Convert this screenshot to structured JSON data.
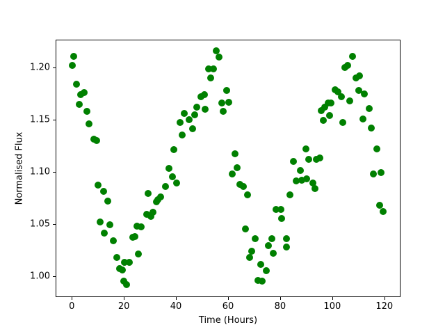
{
  "figure": {
    "background_color": "#ffffff",
    "spine_color": "#000000",
    "tick_color": "#000000",
    "text_color": "#000000"
  },
  "chart_data": {
    "type": "scatter",
    "title": "",
    "xlabel": "Time (Hours)",
    "ylabel": "Normalised Flux",
    "marker": "circle",
    "marker_color": "#008000",
    "marker_diameter_px": 10,
    "grid": false,
    "legend": null,
    "xlim": [
      -6.2,
      126.2
    ],
    "ylim": [
      0.9797,
      1.2268
    ],
    "xticks": [
      0,
      20,
      40,
      60,
      80,
      100,
      120
    ],
    "xtick_labels": [
      "0",
      "20",
      "40",
      "60",
      "80",
      "100",
      "120"
    ],
    "yticks": [
      1.0,
      1.05,
      1.1,
      1.15,
      1.2
    ],
    "ytick_labels": [
      "1.00",
      "1.05",
      "1.10",
      "1.15",
      "1.20"
    ],
    "points": [
      [
        0.2,
        1.202
      ],
      [
        0.8,
        1.211
      ],
      [
        1.9,
        1.184
      ],
      [
        2.8,
        1.165
      ],
      [
        3.4,
        1.174
      ],
      [
        4.7,
        1.176
      ],
      [
        5.7,
        1.158
      ],
      [
        6.6,
        1.146
      ],
      [
        8.5,
        1.131
      ],
      [
        9.5,
        1.13
      ],
      [
        10.1,
        1.087
      ],
      [
        10.8,
        1.052
      ],
      [
        12.3,
        1.081
      ],
      [
        12.4,
        1.041
      ],
      [
        13.9,
        1.072
      ],
      [
        14.5,
        1.049
      ],
      [
        16.0,
        1.034
      ],
      [
        17.2,
        1.018
      ],
      [
        18.3,
        1.007
      ],
      [
        19.4,
        1.006
      ],
      [
        19.9,
        0.995
      ],
      [
        20.2,
        1.013
      ],
      [
        21.1,
        0.992
      ],
      [
        22.1,
        1.013
      ],
      [
        23.4,
        1.037
      ],
      [
        24.3,
        1.038
      ],
      [
        25.0,
        1.048
      ],
      [
        25.5,
        1.021
      ],
      [
        26.5,
        1.047
      ],
      [
        28.8,
        1.059
      ],
      [
        29.4,
        1.079
      ],
      [
        30.3,
        1.057
      ],
      [
        31.1,
        1.061
      ],
      [
        32.4,
        1.071
      ],
      [
        33.0,
        1.073
      ],
      [
        34.0,
        1.076
      ],
      [
        35.9,
        1.086
      ],
      [
        37.2,
        1.103
      ],
      [
        38.7,
        1.095
      ],
      [
        39.2,
        1.121
      ],
      [
        40.3,
        1.089
      ],
      [
        41.6,
        1.147
      ],
      [
        42.3,
        1.135
      ],
      [
        43.3,
        1.156
      ],
      [
        45.0,
        1.15
      ],
      [
        46.3,
        1.141
      ],
      [
        47.2,
        1.155
      ],
      [
        48.1,
        1.162
      ],
      [
        49.7,
        1.172
      ],
      [
        50.8,
        1.174
      ],
      [
        51.2,
        1.16
      ],
      [
        52.6,
        1.199
      ],
      [
        53.4,
        1.19
      ],
      [
        54.5,
        1.199
      ],
      [
        55.5,
        1.216
      ],
      [
        56.5,
        1.21
      ],
      [
        57.6,
        1.166
      ],
      [
        58.1,
        1.158
      ],
      [
        59.5,
        1.178
      ],
      [
        60.4,
        1.167
      ],
      [
        61.7,
        1.098
      ],
      [
        62.7,
        1.117
      ],
      [
        63.5,
        1.104
      ],
      [
        64.6,
        1.088
      ],
      [
        65.8,
        1.086
      ],
      [
        66.8,
        1.045
      ],
      [
        67.4,
        1.078
      ],
      [
        68.4,
        1.018
      ],
      [
        69.0,
        1.024
      ],
      [
        70.5,
        1.036
      ],
      [
        71.4,
        0.996
      ],
      [
        72.5,
        1.011
      ],
      [
        73.0,
        0.995
      ],
      [
        74.6,
        1.005
      ],
      [
        75.5,
        1.029
      ],
      [
        76.7,
        1.036
      ],
      [
        77.3,
        1.022
      ],
      [
        78.5,
        1.064
      ],
      [
        80.2,
        1.064
      ],
      [
        80.6,
        1.055
      ],
      [
        82.3,
        1.036
      ],
      [
        82.4,
        1.028
      ],
      [
        83.8,
        1.078
      ],
      [
        85.2,
        1.11
      ],
      [
        86.1,
        1.091
      ],
      [
        87.7,
        1.101
      ],
      [
        88.3,
        1.092
      ],
      [
        89.9,
        1.122
      ],
      [
        90.2,
        1.093
      ],
      [
        91.0,
        1.112
      ],
      [
        92.5,
        1.089
      ],
      [
        93.4,
        1.084
      ],
      [
        93.9,
        1.112
      ],
      [
        95.2,
        1.113
      ],
      [
        95.9,
        1.159
      ],
      [
        96.5,
        1.149
      ],
      [
        97.1,
        1.162
      ],
      [
        98.5,
        1.166
      ],
      [
        99.0,
        1.154
      ],
      [
        99.6,
        1.166
      ],
      [
        101.0,
        1.179
      ],
      [
        102.3,
        1.177
      ],
      [
        103.6,
        1.172
      ],
      [
        104.1,
        1.147
      ],
      [
        104.8,
        1.2
      ],
      [
        106.0,
        1.202
      ],
      [
        106.8,
        1.168
      ],
      [
        107.9,
        1.211
      ],
      [
        109.2,
        1.19
      ],
      [
        110.1,
        1.178
      ],
      [
        110.4,
        1.192
      ],
      [
        111.8,
        1.151
      ],
      [
        112.4,
        1.175
      ],
      [
        114.1,
        1.161
      ],
      [
        114.9,
        1.142
      ],
      [
        115.7,
        1.098
      ],
      [
        117.0,
        1.122
      ],
      [
        118.1,
        1.068
      ],
      [
        118.6,
        1.099
      ],
      [
        119.6,
        1.062
      ]
    ]
  }
}
